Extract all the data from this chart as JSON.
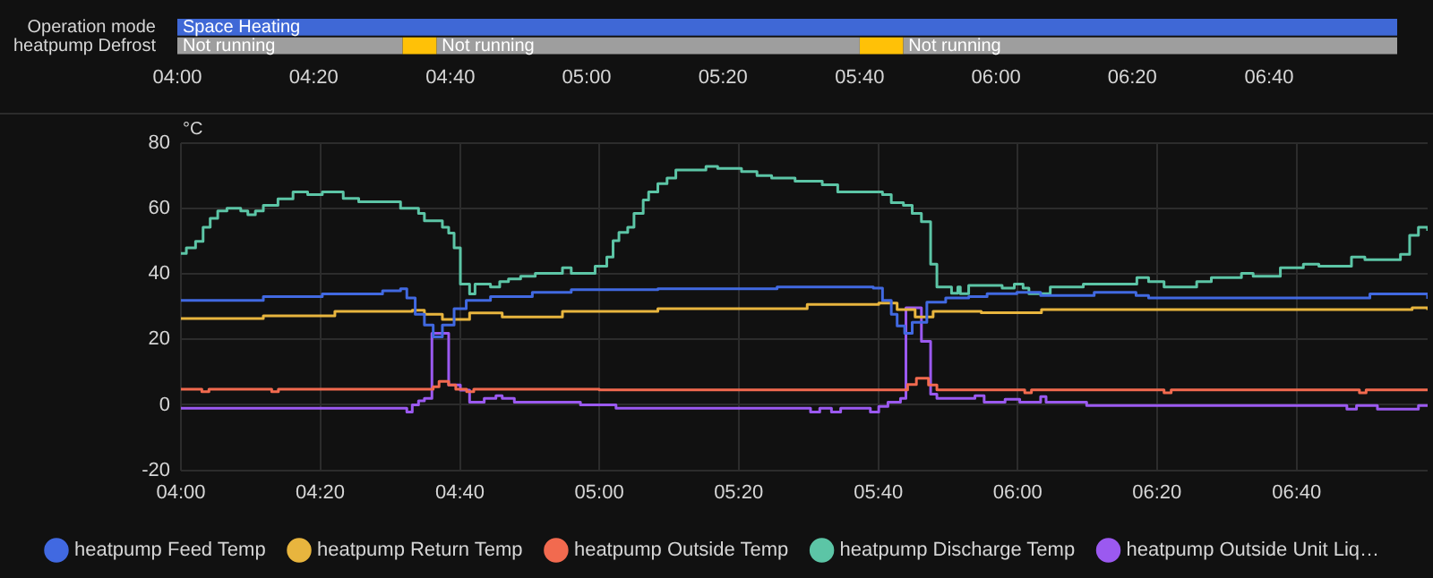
{
  "chart_data": [
    {
      "type": "bar",
      "orientation": "horizontal",
      "categories": [
        "Operation mode",
        "heatpump Defrost"
      ],
      "series": [
        {
          "color": "#3f68d6",
          "values": [
            2.98,
            null
          ],
          "base": [
            4,
            null
          ],
          "value_labels": [
            "Space Heating",
            null
          ]
        },
        {
          "color": "#9e9e9e",
          "values": [
            null,
            0.55
          ],
          "base": [
            null,
            4
          ],
          "value_labels": [
            null,
            "Not running"
          ]
        },
        {
          "color": "#ffc107",
          "values": [
            null,
            0.083
          ],
          "base": [
            null,
            4.55
          ]
        },
        {
          "color": "#9e9e9e",
          "values": [
            null,
            1.034
          ],
          "base": [
            null,
            4.633
          ],
          "value_labels": [
            null,
            "Not running"
          ]
        },
        {
          "color": "#ffc107",
          "values": [
            null,
            0.106
          ],
          "base": [
            null,
            5.667
          ]
        },
        {
          "color": "#9e9e9e",
          "values": [
            null,
            1.207
          ],
          "base": [
            null,
            5.773
          ],
          "value_labels": [
            null,
            "Not running"
          ]
        }
      ],
      "xlim": [
        4,
        6.98
      ],
      "xticks": [
        {
          "value": 4,
          "label": "04:00"
        },
        {
          "value": 4.333,
          "label": "04:20"
        },
        {
          "value": 4.667,
          "label": "04:40"
        },
        {
          "value": 5,
          "label": "05:00"
        },
        {
          "value": 5.333,
          "label": "05:20"
        },
        {
          "value": 5.667,
          "label": "05:40"
        },
        {
          "value": 6,
          "label": "06:00"
        },
        {
          "value": 6.333,
          "label": "06:20"
        },
        {
          "value": 6.667,
          "label": "06:40"
        }
      ]
    },
    {
      "type": "step",
      "ylabel": "°C",
      "grid": true,
      "legend": "bottom",
      "marker": "none",
      "xlim": [
        4,
        6.98
      ],
      "xticks": [
        {
          "value": 4,
          "label": "04:00"
        },
        {
          "value": 4.333,
          "label": "04:20"
        },
        {
          "value": 4.667,
          "label": "04:40"
        },
        {
          "value": 5,
          "label": "05:00"
        },
        {
          "value": 5.333,
          "label": "05:20"
        },
        {
          "value": 5.667,
          "label": "05:40"
        },
        {
          "value": 6,
          "label": "06:00"
        },
        {
          "value": 6.333,
          "label": "06:20"
        },
        {
          "value": 6.667,
          "label": "06:40"
        }
      ],
      "ylim": [
        -20,
        80
      ],
      "yticks": [
        -20,
        0,
        20,
        40,
        60,
        80
      ],
      "series": [
        {
          "name": "heatpump Feed Temp",
          "color": "#4169e1",
          "x": [
            4.0,
            4.197,
            4.338,
            4.482,
            4.525,
            4.54,
            4.56,
            4.582,
            4.603,
            4.625,
            4.653,
            4.682,
            4.74,
            4.84,
            4.933,
            5.14,
            5.425,
            5.655,
            5.677,
            5.698,
            5.712,
            5.73,
            5.748,
            5.783,
            5.828,
            5.883,
            5.927,
            5.998,
            6.055,
            6.183,
            6.283,
            6.313,
            6.485,
            6.842,
            6.98
          ],
          "values": [
            31.9,
            33.1,
            33.9,
            34.9,
            35.5,
            32.7,
            27.7,
            24.4,
            20.8,
            24.4,
            29.4,
            31.9,
            33.1,
            34.4,
            35.2,
            35.5,
            36,
            35.7,
            31.9,
            27.7,
            24.1,
            21.9,
            25.2,
            31.4,
            32.7,
            33.1,
            34,
            34.4,
            33.4,
            34.4,
            33.4,
            32.7,
            32.7,
            33.9,
            32.4
          ]
        },
        {
          "name": "heatpump Return Temp",
          "color": "#e8b53e",
          "x": [
            4.0,
            4.197,
            4.368,
            4.553,
            4.582,
            4.625,
            4.69,
            4.768,
            4.912,
            5.14,
            5.497,
            5.668,
            5.712,
            5.755,
            5.798,
            5.913,
            6.057,
            6.415,
            6.943,
            6.98
          ],
          "values": [
            26.4,
            27.2,
            28.6,
            28.9,
            27.7,
            26.1,
            28.1,
            26.9,
            28.6,
            29.4,
            30.7,
            31.1,
            29.1,
            26.9,
            28.6,
            28.2,
            29.1,
            29.1,
            29.7,
            29
          ]
        },
        {
          "name": "heatpump Outside Temp",
          "color": "#f26a4f",
          "x": [
            4.0,
            4.05,
            4.067,
            4.2,
            4.217,
            4.233,
            4.567,
            4.603,
            4.617,
            4.64,
            4.657,
            4.683,
            4.7,
            5.0,
            5.667,
            5.737,
            5.758,
            5.787,
            5.807,
            6.0,
            6.017,
            6.033,
            6.333,
            6.35,
            6.367,
            6.8,
            6.817,
            6.833,
            6.98
          ],
          "values": [
            4.8,
            4.0,
            4.8,
            4.8,
            4.0,
            4.8,
            4.8,
            5.5,
            7.2,
            6.1,
            4.8,
            4.0,
            4.8,
            4.6,
            4.6,
            6.2,
            8.1,
            6.1,
            4.6,
            4.6,
            3.7,
            4.6,
            4.6,
            3.7,
            4.6,
            4.6,
            3.7,
            4.6,
            4.6
          ]
        },
        {
          "name": "heatpump Discharge Temp",
          "color": "#5cc5a6",
          "x": [
            4.0,
            4.013,
            4.035,
            4.053,
            4.07,
            4.088,
            4.11,
            4.143,
            4.16,
            4.178,
            4.197,
            4.232,
            4.268,
            4.303,
            4.338,
            4.388,
            4.425,
            4.525,
            4.568,
            4.582,
            4.625,
            4.64,
            4.653,
            4.668,
            4.69,
            4.703,
            4.74,
            4.762,
            4.783,
            4.812,
            4.847,
            4.912,
            4.933,
            4.99,
            5.018,
            5.033,
            5.047,
            5.068,
            5.083,
            5.105,
            5.118,
            5.14,
            5.162,
            5.183,
            5.255,
            5.283,
            5.34,
            5.377,
            5.412,
            5.468,
            5.533,
            5.57,
            5.677,
            5.698,
            5.727,
            5.748,
            5.77,
            5.792,
            5.807,
            5.842,
            5.857,
            5.863,
            5.883,
            5.963,
            5.992,
            6.013,
            6.027,
            6.078,
            6.157,
            6.285,
            6.313,
            6.35,
            6.428,
            6.463,
            6.535,
            6.563,
            6.628,
            6.683,
            6.72,
            6.798,
            6.83,
            6.915,
            6.937,
            6.958,
            6.98
          ],
          "values": [
            46.3,
            48,
            50,
            54.3,
            57,
            59.3,
            60.1,
            59.3,
            58.1,
            59.3,
            61,
            63,
            65.1,
            64.3,
            65.1,
            63.1,
            62.1,
            60.1,
            58.5,
            56.3,
            54.3,
            52.5,
            48,
            36.9,
            33.9,
            36.9,
            36,
            37.7,
            38.5,
            39.3,
            40.2,
            41.9,
            40.2,
            42.4,
            45.2,
            50.2,
            52.7,
            54.3,
            58.5,
            62.6,
            65.1,
            67.6,
            69.3,
            71.8,
            72.9,
            72.3,
            71.3,
            70.1,
            69.3,
            68.4,
            67.3,
            65.1,
            64.3,
            61.8,
            61,
            58.5,
            56,
            43,
            36,
            34.1,
            36,
            34,
            36.5,
            35.7,
            36.9,
            35.7,
            34,
            36,
            36.9,
            38.9,
            37.7,
            36,
            37.7,
            38.9,
            40.2,
            39.3,
            41.9,
            43,
            42.4,
            45.2,
            44.4,
            46,
            51.8,
            54.3,
            53.2
          ]
        },
        {
          "name": "heatpump Outside Unit Liq…",
          "color": "#9b59f0",
          "x": [
            4.0,
            4.532,
            4.54,
            4.553,
            4.568,
            4.582,
            4.6,
            4.637,
            4.64,
            4.668,
            4.69,
            4.725,
            4.753,
            4.768,
            4.797,
            4.955,
            5.04,
            5.505,
            5.527,
            5.555,
            5.577,
            5.648,
            5.668,
            5.69,
            5.72,
            5.733,
            5.758,
            5.77,
            5.792,
            5.807,
            5.898,
            5.92,
            5.97,
            6.005,
            6.055,
            6.068,
            6.165,
            6.787,
            6.81,
            6.86,
            6.958,
            6.98
          ],
          "values": [
            -1,
            -1,
            -2.2,
            0,
            1.2,
            2,
            21.9,
            21.9,
            6.1,
            4.5,
            0.8,
            2,
            2.8,
            2,
            0.8,
            0,
            -1,
            -2.2,
            -1,
            -2.2,
            -1,
            -2.2,
            -0.5,
            0.8,
            2,
            29.7,
            29.7,
            19.4,
            3.3,
            2,
            2.8,
            0.8,
            1.7,
            0.8,
            2.5,
            0.8,
            -0.2,
            -1.3,
            -0.2,
            -1.3,
            -0.2,
            -0.2
          ]
        }
      ]
    }
  ]
}
